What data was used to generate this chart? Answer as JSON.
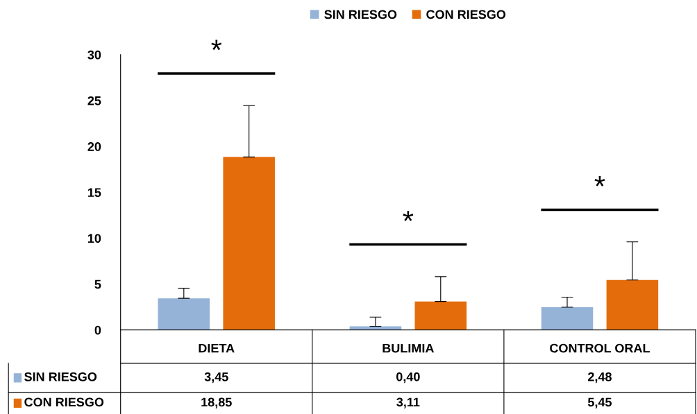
{
  "chart_data": {
    "type": "bar",
    "categories": [
      "DIETA",
      "BULIMIA",
      "CONTROL ORAL"
    ],
    "series": [
      {
        "name": "SIN RIESGO",
        "color": "#95b3d7",
        "values": [
          3.45,
          0.4,
          2.48
        ],
        "value_labels": [
          "3,45",
          "0,40",
          "2,48"
        ],
        "errors": [
          [
            3.45,
            4.55
          ],
          [
            0.4,
            1.4
          ],
          [
            2.48,
            3.58
          ]
        ]
      },
      {
        "name": "CON RIESGO",
        "color": "#e46c0a",
        "values": [
          18.85,
          3.11,
          5.45
        ],
        "value_labels": [
          "18,85",
          "3,11",
          "5,45"
        ],
        "errors": [
          [
            18.85,
            24.45
          ],
          [
            3.11,
            5.81
          ],
          [
            5.45,
            9.6
          ]
        ]
      }
    ],
    "ylim": [
      0,
      30
    ],
    "yticks": [
      0,
      5,
      10,
      15,
      20,
      25,
      30
    ],
    "legend": "bottom left",
    "grid": false,
    "annotations": [
      "*",
      "*",
      "*"
    ]
  }
}
